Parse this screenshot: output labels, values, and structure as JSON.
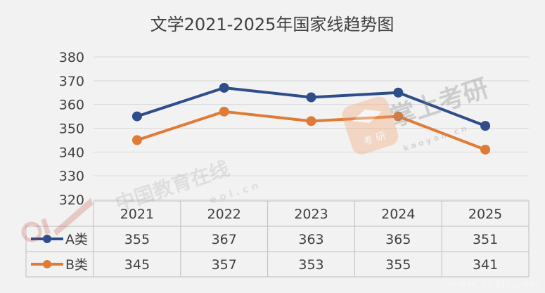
{
  "chart_data": {
    "type": "line",
    "title": "文学2021-2025年国家线趋势图",
    "categories": [
      "2021",
      "2022",
      "2023",
      "2024",
      "2025"
    ],
    "series": [
      {
        "name": "A类",
        "values": [
          355,
          367,
          363,
          365,
          351
        ],
        "color": "#2e4d8a"
      },
      {
        "name": "B类",
        "values": [
          345,
          357,
          353,
          355,
          341
        ],
        "color": "#e07b35"
      }
    ],
    "ylim": [
      320,
      380
    ],
    "yticks": [
      320,
      330,
      340,
      350,
      360,
      370,
      380
    ],
    "grid": true,
    "legend": "data table"
  },
  "watermarks": {
    "eol_brand": "中国教育在线",
    "eol_url": "e o l . c n",
    "kaoyan_brand": "掌上考研",
    "kaoyan_badge": "考 研",
    "kaoyan_url": "k a o y a n . c n"
  },
  "site_mark": "www.365jz.com"
}
